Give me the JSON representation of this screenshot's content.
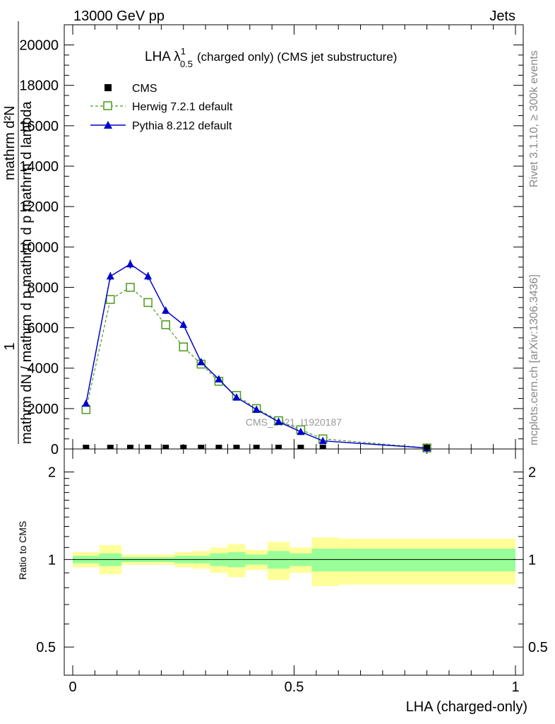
{
  "header": {
    "left": "13000 GeV pp",
    "right": "Jets"
  },
  "side_text": {
    "rivet": "Rivet 3.1.10, ≥ 300k events",
    "mcplots": "mcplots.cern.ch [arXiv:1306.3436]"
  },
  "watermark": "CMS_2021_I1920187",
  "colors": {
    "herwig": "#4a9a1a",
    "pythia": "#0000cc",
    "cms": "#000000",
    "band_inner": "#99ff99",
    "band_outer": "#ffff99"
  },
  "chart_data": [
    {
      "type": "line",
      "title_main": "LHA λ",
      "title_sup": "1",
      "title_sub": "0.5",
      "title_rest": "(charged only) (CMS jet substructure)",
      "ylabel_num": "1",
      "ylabel_den": "mathrm dN / mathrm d p mathrm d p mathrm d lambda",
      "ylabel_top": "mathrm d²N",
      "ylim": [
        0,
        21000
      ],
      "xlim": [
        0,
        1
      ],
      "yticks": [
        0,
        2000,
        4000,
        6000,
        8000,
        10000,
        12000,
        14000,
        16000,
        18000,
        20000
      ],
      "ytick_labels": [
        "0",
        "2000",
        "4000",
        "6000",
        "8000",
        "10000",
        "12000",
        "14000",
        "16000",
        "18000",
        "20000"
      ],
      "legend": [
        "CMS",
        "Herwig 7.2.1 default",
        "Pythia 8.212 default"
      ],
      "series": [
        {
          "name": "CMS",
          "x": [
            0.03,
            0.085,
            0.13,
            0.17,
            0.21,
            0.25,
            0.29,
            0.33,
            0.37,
            0.415,
            0.465,
            0.515,
            0.565,
            0.8
          ],
          "values": [
            20,
            20,
            20,
            20,
            20,
            20,
            20,
            20,
            20,
            20,
            20,
            20,
            20,
            20
          ]
        },
        {
          "name": "Herwig 7.2.1 default",
          "x": [
            0.03,
            0.085,
            0.13,
            0.17,
            0.21,
            0.25,
            0.29,
            0.33,
            0.37,
            0.415,
            0.465,
            0.515,
            0.565,
            0.8
          ],
          "values": [
            1950,
            7400,
            8000,
            7250,
            6150,
            5050,
            4200,
            3350,
            2650,
            2000,
            1400,
            950,
            500,
            50
          ]
        },
        {
          "name": "Pythia 8.212 default",
          "x": [
            0.03,
            0.085,
            0.13,
            0.17,
            0.21,
            0.25,
            0.29,
            0.33,
            0.37,
            0.415,
            0.465,
            0.515,
            0.565,
            0.8
          ],
          "values": [
            2250,
            8550,
            9150,
            8550,
            6850,
            6150,
            4300,
            3450,
            2550,
            1950,
            1350,
            850,
            400,
            50
          ],
          "errors": [
            80,
            200,
            220,
            200,
            170,
            160,
            120,
            110,
            90,
            70,
            60,
            50,
            40,
            20
          ]
        }
      ]
    },
    {
      "type": "area",
      "ylabel": "Ratio to CMS",
      "xlabel": "LHA (charged-only)",
      "ylim": [
        0.4,
        2.4
      ],
      "xlim": [
        0,
        1
      ],
      "xticks": [
        0,
        0.5,
        1
      ],
      "xtick_labels": [
        "0",
        "0.5",
        "1"
      ],
      "yticks": [
        0.5,
        1,
        2
      ],
      "ytick_labels": [
        "0.5",
        "1",
        "2"
      ],
      "bins": [
        0.0,
        0.06,
        0.11,
        0.15,
        0.19,
        0.23,
        0.27,
        0.31,
        0.35,
        0.39,
        0.44,
        0.49,
        0.54,
        0.6,
        1.0
      ],
      "inner_up": [
        1.03,
        1.05,
        1.02,
        1.02,
        1.02,
        1.03,
        1.03,
        1.05,
        1.06,
        1.04,
        1.07,
        1.05,
        1.09,
        1.09
      ],
      "inner_down": [
        0.97,
        0.95,
        0.98,
        0.98,
        0.98,
        0.97,
        0.97,
        0.95,
        0.94,
        0.96,
        0.93,
        0.95,
        0.91,
        0.91
      ],
      "outer_up": [
        1.06,
        1.12,
        1.04,
        1.04,
        1.04,
        1.06,
        1.07,
        1.1,
        1.13,
        1.08,
        1.15,
        1.1,
        1.19,
        1.18
      ],
      "outer_down": [
        0.94,
        0.89,
        0.96,
        0.96,
        0.96,
        0.94,
        0.93,
        0.9,
        0.87,
        0.92,
        0.85,
        0.9,
        0.81,
        0.82
      ]
    }
  ]
}
